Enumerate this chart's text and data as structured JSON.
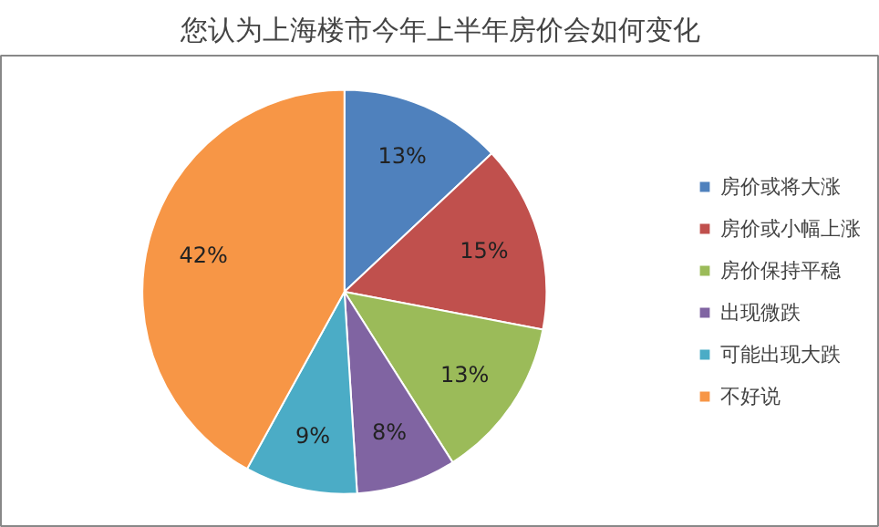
{
  "chart_data": {
    "type": "pie",
    "title": "您认为上海楼市今年上半年房价会如何变化",
    "categories": [
      "房价或将大涨",
      "房价或小幅上涨",
      "房价保持平稳",
      "出现微跌",
      "可能出现大跌",
      "不好说"
    ],
    "values": [
      13,
      15,
      13,
      8,
      9,
      42
    ],
    "colors": [
      "#4f81bd",
      "#c0504d",
      "#9bbb59",
      "#8064a2",
      "#4bacc6",
      "#f79646"
    ],
    "value_labels": [
      "13%",
      "15%",
      "13%",
      "8%",
      "9%",
      "42%"
    ],
    "legend": "right"
  }
}
